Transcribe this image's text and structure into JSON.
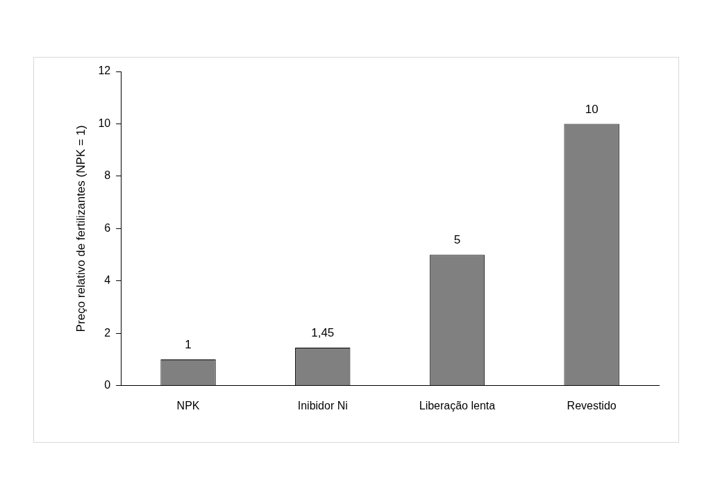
{
  "chart_data": {
    "type": "bar",
    "y_label": "Preço relativo de fertilizantes (NPK = 1)",
    "categories": [
      "NPK",
      "Inibidor Ni",
      "Liberação lenta",
      "Revestido"
    ],
    "values": [
      1,
      1.45,
      5,
      10
    ],
    "value_labels": [
      "1",
      "1,45",
      "5",
      "10"
    ],
    "color": "#808080",
    "ylim": [
      0,
      12
    ],
    "yticks": [
      0,
      2,
      4,
      6,
      8,
      10,
      12
    ],
    "grid": false,
    "data_labels": true
  }
}
